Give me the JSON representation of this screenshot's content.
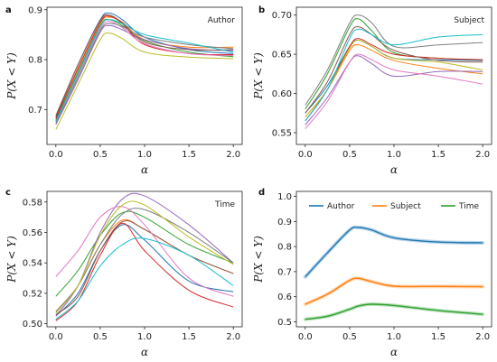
{
  "palette": [
    "#1f77b4",
    "#ff7f0e",
    "#2ca02c",
    "#d62728",
    "#9467bd",
    "#8c564b",
    "#e377c2",
    "#7f7f7f",
    "#bcbd22",
    "#17becf"
  ],
  "chart_data": [
    {
      "letter": "a",
      "type": "line",
      "annotation": "Author",
      "xlabel": "α",
      "ylabel": "P(X < Y)",
      "xlim": [
        -0.1,
        2.1
      ],
      "ylim": [
        0.63,
        0.905
      ],
      "xticks": [
        "0.0",
        "0.5",
        "1.0",
        "1.5",
        "2.0"
      ],
      "yticks": [
        "0.7",
        "0.8",
        "0.9"
      ],
      "x": [
        0,
        0.25,
        0.5,
        0.6,
        0.75,
        1.0,
        1.5,
        2.0
      ],
      "series": [
        {
          "values": [
            0.685,
            0.79,
            0.88,
            0.893,
            0.88,
            0.845,
            0.82,
            0.812
          ]
        },
        {
          "values": [
            0.68,
            0.78,
            0.872,
            0.885,
            0.875,
            0.84,
            0.825,
            0.825
          ]
        },
        {
          "values": [
            0.678,
            0.775,
            0.868,
            0.88,
            0.868,
            0.838,
            0.815,
            0.806
          ]
        },
        {
          "values": [
            0.682,
            0.783,
            0.874,
            0.887,
            0.872,
            0.83,
            0.812,
            0.81
          ]
        },
        {
          "values": [
            0.67,
            0.76,
            0.855,
            0.868,
            0.86,
            0.84,
            0.822,
            0.818
          ]
        },
        {
          "values": [
            0.688,
            0.79,
            0.878,
            0.889,
            0.874,
            0.835,
            0.82,
            0.82
          ]
        },
        {
          "values": [
            0.675,
            0.77,
            0.862,
            0.876,
            0.864,
            0.832,
            0.812,
            0.808
          ]
        },
        {
          "values": [
            0.672,
            0.765,
            0.858,
            0.872,
            0.866,
            0.845,
            0.83,
            0.822
          ]
        },
        {
          "values": [
            0.66,
            0.75,
            0.84,
            0.853,
            0.842,
            0.815,
            0.805,
            0.802
          ]
        },
        {
          "values": [
            0.676,
            0.772,
            0.866,
            0.88,
            0.872,
            0.85,
            0.833,
            0.815
          ]
        }
      ]
    },
    {
      "letter": "b",
      "type": "line",
      "annotation": "Subject",
      "xlabel": "α",
      "ylabel": "P(X < Y)",
      "xlim": [
        -0.1,
        2.1
      ],
      "ylim": [
        0.535,
        0.71
      ],
      "xticks": [
        "0.0",
        "0.5",
        "1.0",
        "1.5",
        "2.0"
      ],
      "yticks": [
        "0.55",
        "0.60",
        "0.65",
        "0.70"
      ],
      "x": [
        0,
        0.25,
        0.5,
        0.6,
        0.75,
        1.0,
        1.5,
        2.0
      ],
      "series": [
        {
          "values": [
            0.575,
            0.61,
            0.66,
            0.668,
            0.66,
            0.645,
            0.643,
            0.642
          ]
        },
        {
          "values": [
            0.57,
            0.605,
            0.655,
            0.662,
            0.655,
            0.642,
            0.632,
            0.625
          ]
        },
        {
          "values": [
            0.58,
            0.625,
            0.685,
            0.695,
            0.68,
            0.652,
            0.645,
            0.643
          ]
        },
        {
          "values": [
            0.565,
            0.605,
            0.66,
            0.67,
            0.662,
            0.65,
            0.645,
            0.643
          ]
        },
        {
          "values": [
            0.56,
            0.595,
            0.64,
            0.648,
            0.638,
            0.622,
            0.628,
            0.628
          ]
        },
        {
          "values": [
            0.575,
            0.615,
            0.675,
            0.685,
            0.675,
            0.655,
            0.642,
            0.64
          ]
        },
        {
          "values": [
            0.555,
            0.59,
            0.64,
            0.65,
            0.643,
            0.63,
            0.622,
            0.612
          ]
        },
        {
          "values": [
            0.585,
            0.63,
            0.69,
            0.7,
            0.69,
            0.66,
            0.662,
            0.665
          ]
        },
        {
          "values": [
            0.57,
            0.605,
            0.658,
            0.668,
            0.66,
            0.645,
            0.64,
            0.63
          ]
        },
        {
          "values": [
            0.565,
            0.605,
            0.67,
            0.682,
            0.675,
            0.662,
            0.672,
            0.675
          ]
        }
      ]
    },
    {
      "letter": "c",
      "type": "line",
      "annotation": "Time",
      "xlabel": "α",
      "ylabel": "P(X < Y)",
      "xlim": [
        -0.1,
        2.1
      ],
      "ylim": [
        0.498,
        0.587
      ],
      "xticks": [
        "0.0",
        "0.5",
        "1.0",
        "1.5",
        "2.0"
      ],
      "yticks": [
        "0.50",
        "0.52",
        "0.54",
        "0.56",
        "0.58"
      ],
      "x": [
        0,
        0.25,
        0.5,
        0.75,
        1.0,
        1.5,
        2.0
      ],
      "series": [
        {
          "values": [
            0.505,
            0.52,
            0.548,
            0.565,
            0.555,
            0.528,
            0.521
          ]
        },
        {
          "values": [
            0.508,
            0.525,
            0.552,
            0.568,
            0.562,
            0.545,
            0.533
          ]
        },
        {
          "values": [
            0.518,
            0.535,
            0.558,
            0.573,
            0.57,
            0.552,
            0.54
          ]
        },
        {
          "values": [
            0.502,
            0.515,
            0.545,
            0.566,
            0.548,
            0.522,
            0.511
          ]
        },
        {
          "values": [
            0.505,
            0.525,
            0.56,
            0.582,
            0.584,
            0.565,
            0.54
          ]
        },
        {
          "values": [
            0.506,
            0.518,
            0.548,
            0.567,
            0.562,
            0.545,
            0.533
          ]
        },
        {
          "values": [
            0.531,
            0.548,
            0.57,
            0.577,
            0.565,
            0.53,
            0.518
          ]
        },
        {
          "values": [
            0.508,
            0.525,
            0.552,
            0.572,
            0.575,
            0.56,
            0.54
          ]
        },
        {
          "values": [
            0.507,
            0.525,
            0.558,
            0.578,
            0.578,
            0.557,
            0.539
          ]
        },
        {
          "values": [
            0.503,
            0.515,
            0.538,
            0.552,
            0.556,
            0.545,
            0.525
          ]
        }
      ]
    },
    {
      "letter": "d",
      "type": "line",
      "xlabel": "α",
      "ylabel": "P(X < Y)",
      "xlim": [
        -0.1,
        2.1
      ],
      "ylim": [
        0.48,
        1.02
      ],
      "xticks": [
        "0.0",
        "0.5",
        "1.0",
        "1.5",
        "2.0"
      ],
      "yticks": [
        "0.5",
        "0.6",
        "0.7",
        "0.8",
        "0.9",
        "1.0"
      ],
      "legend": "top",
      "x": [
        0,
        0.25,
        0.5,
        0.6,
        0.75,
        1.0,
        1.5,
        2.0
      ],
      "series": [
        {
          "name": "Author",
          "color": "#1f77b4",
          "values": [
            0.679,
            0.775,
            0.866,
            0.876,
            0.866,
            0.835,
            0.818,
            0.815
          ]
        },
        {
          "name": "Subject",
          "color": "#ff7f0e",
          "values": [
            0.57,
            0.61,
            0.665,
            0.673,
            0.66,
            0.642,
            0.641,
            0.64
          ]
        },
        {
          "name": "Time",
          "color": "#2ca02c",
          "values": [
            0.51,
            0.522,
            0.55,
            0.563,
            0.57,
            0.565,
            0.545,
            0.53
          ]
        }
      ]
    }
  ]
}
